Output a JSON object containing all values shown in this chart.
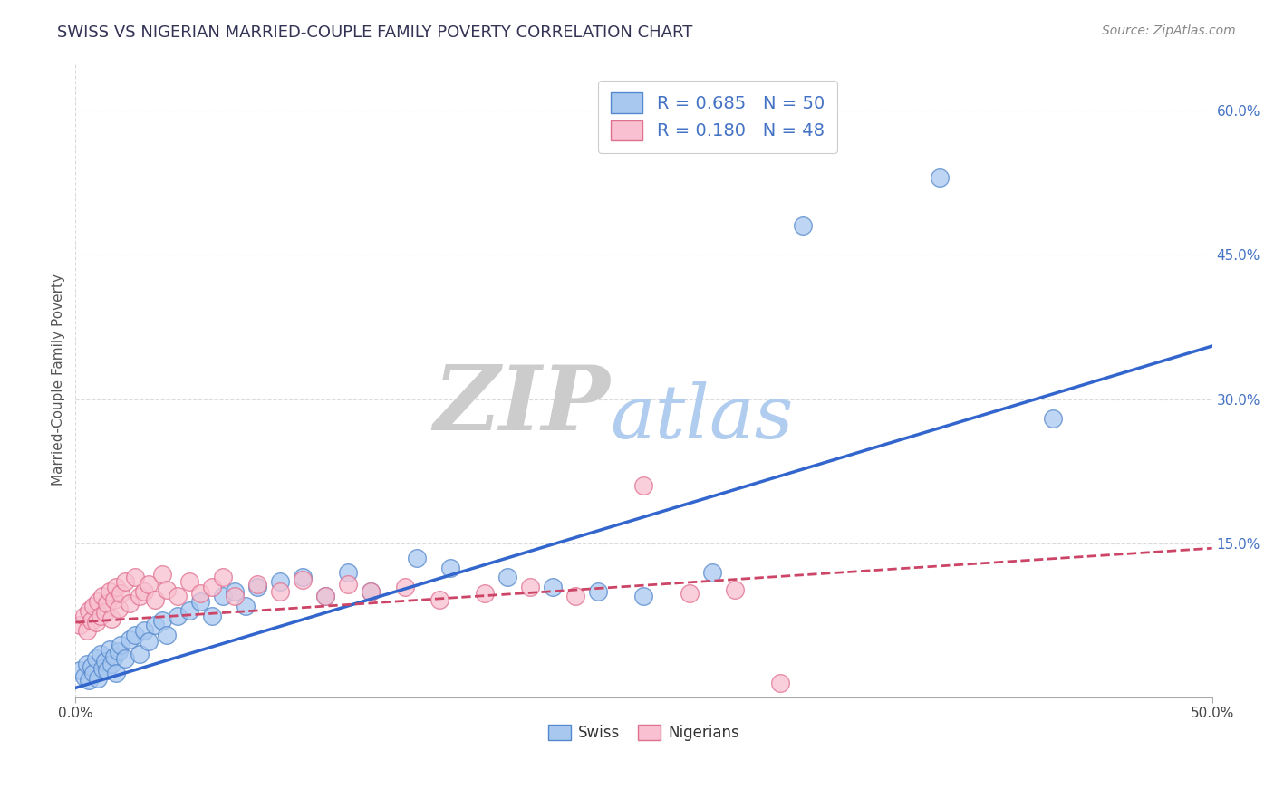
{
  "title": "SWISS VS NIGERIAN MARRIED-COUPLE FAMILY POVERTY CORRELATION CHART",
  "source": "Source: ZipAtlas.com",
  "xlim": [
    0.0,
    0.5
  ],
  "ylim": [
    -0.01,
    0.65
  ],
  "swiss_r": 0.685,
  "swiss_n": 50,
  "nigerian_r": 0.18,
  "nigerian_n": 48,
  "swiss_color": "#a8c8f0",
  "swiss_edge_color": "#5588cc",
  "nigerian_color": "#f8c0d0",
  "nigerian_edge_color": "#e07090",
  "watermark_zip_color": "#cccccc",
  "watermark_atlas_color": "#b0ccee",
  "background_color": "#ffffff",
  "grid_color": "#cccccc",
  "title_color": "#333355",
  "axis_label_color": "#555555",
  "right_tick_color": "#4472c4",
  "tick_label_color": "#444444",
  "swiss_line_color": "#3366cc",
  "nigerian_line_color": "#cc4466",
  "swiss_scatter": [
    [
      0.002,
      0.018
    ],
    [
      0.004,
      0.012
    ],
    [
      0.005,
      0.025
    ],
    [
      0.006,
      0.008
    ],
    [
      0.007,
      0.022
    ],
    [
      0.008,
      0.015
    ],
    [
      0.009,
      0.03
    ],
    [
      0.01,
      0.01
    ],
    [
      0.011,
      0.035
    ],
    [
      0.012,
      0.02
    ],
    [
      0.013,
      0.028
    ],
    [
      0.014,
      0.018
    ],
    [
      0.015,
      0.04
    ],
    [
      0.016,
      0.025
    ],
    [
      0.017,
      0.032
    ],
    [
      0.018,
      0.015
    ],
    [
      0.019,
      0.038
    ],
    [
      0.02,
      0.045
    ],
    [
      0.022,
      0.03
    ],
    [
      0.024,
      0.05
    ],
    [
      0.026,
      0.055
    ],
    [
      0.028,
      0.035
    ],
    [
      0.03,
      0.06
    ],
    [
      0.032,
      0.048
    ],
    [
      0.035,
      0.065
    ],
    [
      0.038,
      0.07
    ],
    [
      0.04,
      0.055
    ],
    [
      0.045,
      0.075
    ],
    [
      0.05,
      0.08
    ],
    [
      0.055,
      0.09
    ],
    [
      0.06,
      0.075
    ],
    [
      0.065,
      0.095
    ],
    [
      0.07,
      0.1
    ],
    [
      0.075,
      0.085
    ],
    [
      0.08,
      0.105
    ],
    [
      0.09,
      0.11
    ],
    [
      0.1,
      0.115
    ],
    [
      0.11,
      0.095
    ],
    [
      0.12,
      0.12
    ],
    [
      0.13,
      0.1
    ],
    [
      0.15,
      0.135
    ],
    [
      0.165,
      0.125
    ],
    [
      0.19,
      0.115
    ],
    [
      0.21,
      0.105
    ],
    [
      0.23,
      0.1
    ],
    [
      0.25,
      0.095
    ],
    [
      0.28,
      0.12
    ],
    [
      0.32,
      0.48
    ],
    [
      0.38,
      0.53
    ],
    [
      0.43,
      0.28
    ]
  ],
  "nigerian_scatter": [
    [
      0.002,
      0.065
    ],
    [
      0.004,
      0.075
    ],
    [
      0.005,
      0.06
    ],
    [
      0.006,
      0.08
    ],
    [
      0.007,
      0.07
    ],
    [
      0.008,
      0.085
    ],
    [
      0.009,
      0.068
    ],
    [
      0.01,
      0.09
    ],
    [
      0.011,
      0.075
    ],
    [
      0.012,
      0.095
    ],
    [
      0.013,
      0.078
    ],
    [
      0.014,
      0.088
    ],
    [
      0.015,
      0.1
    ],
    [
      0.016,
      0.072
    ],
    [
      0.017,
      0.092
    ],
    [
      0.018,
      0.105
    ],
    [
      0.019,
      0.082
    ],
    [
      0.02,
      0.098
    ],
    [
      0.022,
      0.11
    ],
    [
      0.024,
      0.088
    ],
    [
      0.026,
      0.115
    ],
    [
      0.028,
      0.095
    ],
    [
      0.03,
      0.1
    ],
    [
      0.032,
      0.108
    ],
    [
      0.035,
      0.092
    ],
    [
      0.038,
      0.118
    ],
    [
      0.04,
      0.102
    ],
    [
      0.045,
      0.095
    ],
    [
      0.05,
      0.11
    ],
    [
      0.055,
      0.098
    ],
    [
      0.06,
      0.105
    ],
    [
      0.065,
      0.115
    ],
    [
      0.07,
      0.095
    ],
    [
      0.08,
      0.108
    ],
    [
      0.09,
      0.1
    ],
    [
      0.1,
      0.112
    ],
    [
      0.11,
      0.095
    ],
    [
      0.12,
      0.108
    ],
    [
      0.13,
      0.1
    ],
    [
      0.145,
      0.105
    ],
    [
      0.16,
      0.092
    ],
    [
      0.18,
      0.098
    ],
    [
      0.2,
      0.105
    ],
    [
      0.22,
      0.095
    ],
    [
      0.25,
      0.21
    ],
    [
      0.27,
      0.098
    ],
    [
      0.29,
      0.102
    ],
    [
      0.31,
      0.005
    ]
  ],
  "swiss_trend_x": [
    0.0,
    0.5
  ],
  "swiss_trend_y": [
    0.0,
    0.355
  ],
  "nigerian_trend_x": [
    0.0,
    0.5
  ],
  "nigerian_trend_y": [
    0.068,
    0.145
  ]
}
